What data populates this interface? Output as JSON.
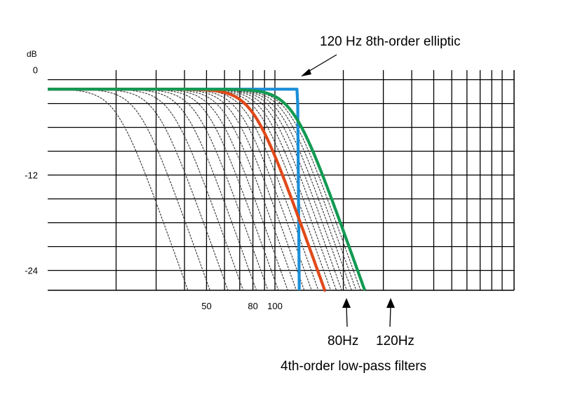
{
  "chart_data": {
    "type": "line",
    "title": "",
    "xlabel": "",
    "ylabel": "dB",
    "x_scale": "log",
    "x_tick_labels": [
      "50",
      "80",
      "100"
    ],
    "y_ticks": [
      {
        "value": 0,
        "label": "0"
      },
      {
        "value": -12,
        "label": "-12"
      },
      {
        "value": -24,
        "label": "-24"
      }
    ],
    "ylim": [
      -26.5,
      1.2
    ],
    "grid": true,
    "series": [
      {
        "name": "120 Hz 8th-order elliptic",
        "color": "#1a8fd8",
        "points": [
          [
            10,
            -1.2
          ],
          [
            125,
            -1.2
          ],
          [
            126,
            -3.0
          ],
          [
            128,
            -26.5
          ]
        ]
      },
      {
        "name": "80Hz",
        "color": "#e1491a",
        "cutoff": 80,
        "order": 4
      },
      {
        "name": "120Hz",
        "color": "#129a52",
        "cutoff": 120,
        "order": 4
      }
    ],
    "family": {
      "color": "#333333",
      "order": 4,
      "cutoffs": [
        20,
        25,
        30,
        35,
        40,
        45,
        50,
        55,
        60,
        65,
        70,
        75,
        85,
        90,
        95,
        100,
        105,
        110,
        115
      ]
    },
    "annotations": {
      "elliptic": "120 Hz 8th-order elliptic",
      "marker_80": "80Hz",
      "marker_120": "120Hz",
      "caption": "4th-order low-pass filters"
    }
  }
}
